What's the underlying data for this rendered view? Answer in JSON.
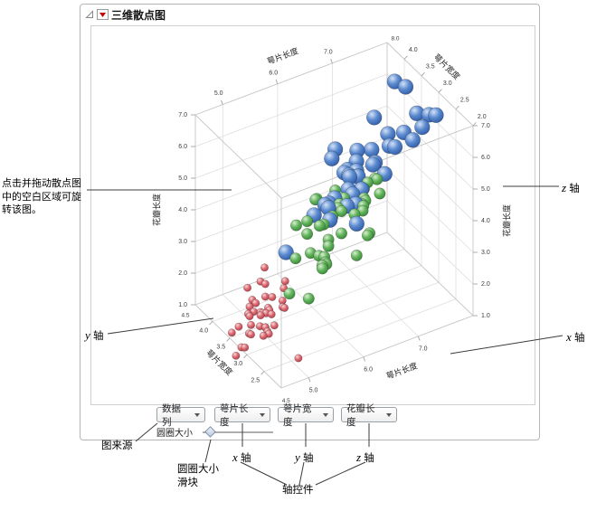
{
  "panel": {
    "title": "三维散点图"
  },
  "controls": {
    "dropdowns": [
      {
        "label": "数据列"
      },
      {
        "label": "萼片长度"
      },
      {
        "label": "萼片宽度"
      },
      {
        "label": "花瓣长度"
      }
    ],
    "size_label": "圆圈大小"
  },
  "annotations": {
    "rotate_hint": "点击并拖动散点图中的空白区域可旋转该图。",
    "y_axis": {
      "letter": "y",
      "suffix": " 轴"
    },
    "x_axis": {
      "letter": "x",
      "suffix": " 轴"
    },
    "z_axis": {
      "letter": "z",
      "suffix": " 轴"
    },
    "x_axis_bottom": {
      "letter": "x",
      "suffix": " 轴"
    },
    "y_axis_bottom": {
      "letter": "y",
      "suffix": " 轴"
    },
    "z_axis_bottom": {
      "letter": "z",
      "suffix": " 轴"
    },
    "plot_source": "图来源",
    "size_slider_line1": "圆圈大小",
    "size_slider_line2": "滑块",
    "axis_controls": "轴控件"
  },
  "chart_data": {
    "type": "scatter",
    "subtype": "scatter3d",
    "title": "三维散点图",
    "axes": {
      "x": {
        "label": "萼片长度",
        "min": 4.5,
        "max": 8.0,
        "ticks": [
          "5.0",
          "6.0",
          "7.0"
        ],
        "corner_min_label": "4.5",
        "corner_max_label": "8.0"
      },
      "y": {
        "label": "萼片宽度",
        "min": 2.0,
        "max": 4.5,
        "ticks_bottom": [
          "2.5",
          "3.0",
          "3.5",
          "4.0"
        ],
        "ticks_top": [
          "2.0",
          "2.5",
          "3.0",
          "3.5",
          "4.0"
        ],
        "corner_label": "4.5"
      },
      "z": {
        "label": "花瓣长度",
        "min": 1.0,
        "max": 7.0,
        "ticks": [
          "1.0",
          "2.0",
          "3.0",
          "4.0",
          "5.0",
          "6.0",
          "7.0"
        ]
      }
    },
    "series": [
      {
        "name": "small-red-markers",
        "radius": 4.2,
        "colors": {
          "hi": "#f8d8da",
          "mid": "#de6a73",
          "edge": "#a23640"
        },
        "points": [
          [
            5.1,
            3.5,
            1.4
          ],
          [
            4.9,
            3.0,
            1.4
          ],
          [
            4.7,
            3.2,
            1.3
          ],
          [
            4.6,
            3.1,
            1.5
          ],
          [
            5.0,
            3.6,
            1.4
          ],
          [
            5.4,
            3.9,
            1.7
          ],
          [
            4.6,
            3.4,
            1.4
          ],
          [
            5.0,
            3.4,
            1.5
          ],
          [
            4.4,
            2.9,
            1.4
          ],
          [
            4.9,
            3.1,
            1.5
          ],
          [
            5.4,
            3.7,
            1.5
          ],
          [
            4.8,
            3.4,
            1.6
          ],
          [
            4.8,
            3.0,
            1.4
          ],
          [
            4.3,
            3.0,
            1.1
          ],
          [
            5.8,
            4.0,
            1.2
          ],
          [
            5.7,
            4.4,
            1.5
          ],
          [
            5.4,
            3.9,
            1.3
          ],
          [
            5.0,
            2.3,
            1.3
          ],
          [
            5.7,
            3.8,
            1.7
          ],
          [
            5.1,
            3.8,
            1.5
          ],
          [
            5.4,
            3.4,
            1.7
          ],
          [
            5.1,
            3.7,
            1.5
          ],
          [
            4.6,
            3.6,
            1.0
          ],
          [
            5.1,
            3.3,
            1.7
          ],
          [
            4.8,
            3.4,
            1.9
          ],
          [
            5.0,
            3.0,
            1.6
          ],
          [
            5.0,
            3.4,
            1.6
          ],
          [
            5.2,
            3.5,
            1.5
          ],
          [
            5.2,
            3.4,
            1.4
          ],
          [
            4.7,
            3.2,
            1.6
          ],
          [
            4.8,
            3.1,
            1.6
          ],
          [
            5.4,
            3.4,
            1.5
          ],
          [
            5.2,
            4.1,
            1.5
          ],
          [
            5.5,
            4.2,
            1.4
          ],
          [
            4.9,
            3.1,
            1.5
          ],
          [
            5.0,
            3.2,
            1.2
          ],
          [
            5.5,
            3.5,
            1.3
          ],
          [
            4.9,
            3.6,
            1.4
          ],
          [
            4.4,
            3.0,
            1.3
          ],
          [
            5.1,
            3.4,
            1.5
          ]
        ]
      },
      {
        "name": "medium-green-markers",
        "radius": 6.2,
        "colors": {
          "hi": "#d9efd2",
          "mid": "#63b55c",
          "edge": "#2e7a31"
        },
        "points": [
          [
            7.0,
            3.2,
            4.7
          ],
          [
            6.4,
            3.2,
            4.5
          ],
          [
            6.9,
            3.1,
            4.9
          ],
          [
            5.5,
            2.3,
            4.0
          ],
          [
            6.5,
            2.8,
            4.6
          ],
          [
            5.7,
            2.8,
            4.5
          ],
          [
            6.3,
            3.3,
            4.7
          ],
          [
            4.9,
            2.4,
            3.3
          ],
          [
            6.6,
            2.9,
            4.6
          ],
          [
            5.2,
            2.7,
            3.9
          ],
          [
            5.0,
            2.0,
            3.5
          ],
          [
            5.9,
            3.0,
            4.2
          ],
          [
            6.0,
            2.2,
            4.0
          ],
          [
            6.1,
            2.9,
            4.7
          ],
          [
            5.6,
            2.9,
            3.6
          ],
          [
            6.7,
            3.1,
            4.4
          ],
          [
            5.6,
            3.0,
            4.5
          ],
          [
            5.8,
            2.7,
            4.1
          ],
          [
            6.2,
            2.2,
            4.5
          ],
          [
            5.6,
            2.5,
            3.9
          ],
          [
            5.9,
            3.2,
            4.8
          ],
          [
            6.1,
            2.8,
            4.0
          ],
          [
            6.3,
            2.5,
            4.9
          ],
          [
            6.1,
            2.8,
            4.7
          ],
          [
            6.4,
            2.9,
            4.3
          ],
          [
            6.6,
            3.0,
            4.4
          ],
          [
            6.8,
            2.8,
            4.8
          ],
          [
            6.7,
            3.0,
            5.0
          ],
          [
            6.0,
            2.9,
            4.5
          ],
          [
            5.7,
            2.6,
            3.5
          ],
          [
            5.5,
            2.4,
            3.8
          ],
          [
            5.5,
            2.4,
            3.7
          ],
          [
            5.8,
            2.7,
            3.9
          ],
          [
            6.0,
            2.7,
            5.1
          ],
          [
            5.4,
            3.0,
            4.5
          ],
          [
            6.0,
            3.4,
            4.5
          ],
          [
            6.7,
            3.1,
            4.7
          ],
          [
            6.3,
            2.3,
            4.4
          ],
          [
            5.6,
            3.0,
            4.1
          ],
          [
            5.5,
            2.5,
            4.0
          ]
        ]
      },
      {
        "name": "large-blue-markers",
        "radius": 8.4,
        "colors": {
          "hi": "#d3e2f7",
          "mid": "#5a89cf",
          "edge": "#26509a"
        },
        "points": [
          [
            6.3,
            3.3,
            6.0
          ],
          [
            5.8,
            2.7,
            5.1
          ],
          [
            7.1,
            3.0,
            5.9
          ],
          [
            6.3,
            2.9,
            5.6
          ],
          [
            6.5,
            3.0,
            5.8
          ],
          [
            7.6,
            3.0,
            6.6
          ],
          [
            4.9,
            2.5,
            4.5
          ],
          [
            7.3,
            2.9,
            6.3
          ],
          [
            6.7,
            2.5,
            5.8
          ],
          [
            7.2,
            3.6,
            6.1
          ],
          [
            6.5,
            3.2,
            5.1
          ],
          [
            6.4,
            2.7,
            5.3
          ],
          [
            6.8,
            3.0,
            5.5
          ],
          [
            5.7,
            2.5,
            5.0
          ],
          [
            5.8,
            2.8,
            5.1
          ],
          [
            6.4,
            3.2,
            5.3
          ],
          [
            6.5,
            3.0,
            5.5
          ],
          [
            7.7,
            3.8,
            6.7
          ],
          [
            7.7,
            2.6,
            6.9
          ],
          [
            6.0,
            2.2,
            5.0
          ],
          [
            6.9,
            3.2,
            5.7
          ],
          [
            5.6,
            2.8,
            4.9
          ],
          [
            7.7,
            2.8,
            6.7
          ],
          [
            6.3,
            2.7,
            4.9
          ],
          [
            6.7,
            3.3,
            5.7
          ],
          [
            7.2,
            3.2,
            6.0
          ],
          [
            6.2,
            2.8,
            4.8
          ],
          [
            6.1,
            3.0,
            4.9
          ],
          [
            6.4,
            2.8,
            5.6
          ],
          [
            7.2,
            3.0,
            5.8
          ],
          [
            7.4,
            2.8,
            6.1
          ],
          [
            7.9,
            3.8,
            6.4
          ],
          [
            6.4,
            2.8,
            5.6
          ],
          [
            6.3,
            2.8,
            5.1
          ],
          [
            6.1,
            2.6,
            5.6
          ],
          [
            7.7,
            3.0,
            6.1
          ],
          [
            6.3,
            3.4,
            5.6
          ],
          [
            6.4,
            3.1,
            5.5
          ],
          [
            6.0,
            3.0,
            4.8
          ],
          [
            6.9,
            3.1,
            5.4
          ]
        ]
      }
    ]
  }
}
